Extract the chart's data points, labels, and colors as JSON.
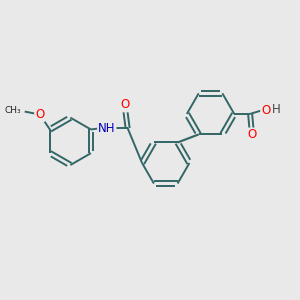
{
  "bg_color": "#e9e9e9",
  "bond_color": "#336666",
  "bond_width": 1.4,
  "atom_colors": {
    "O": "#ff0000",
    "N": "#0000bb",
    "H": "#444444"
  },
  "font_size": 8.5
}
